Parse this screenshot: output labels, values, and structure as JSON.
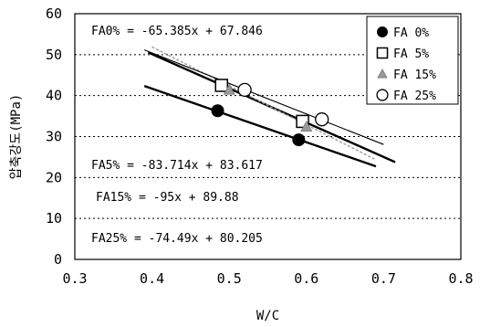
{
  "chart_data": {
    "type": "scatter",
    "xlabel": "W/C",
    "ylabel": "압축강도(MPa)",
    "xlim": [
      0.3,
      0.8
    ],
    "ylim": [
      0,
      60
    ],
    "x_ticks": [
      "0.3",
      "0.4",
      "0.5",
      "0.6",
      "0.7",
      "0.8"
    ],
    "y_ticks": [
      "0",
      "10",
      "20",
      "30",
      "40",
      "50",
      "60"
    ],
    "grid": "horizontal dashed",
    "legend_position": "top-right",
    "series": [
      {
        "name": "FA 0%",
        "marker": "filled-circle",
        "points": [
          {
            "x": 0.485,
            "y": 36.3
          },
          {
            "x": 0.59,
            "y": 29.2
          }
        ],
        "trend": {
          "slope": -65.385,
          "intercept": 67.846,
          "x_range": [
            0.39,
            0.69
          ]
        },
        "equation": "FA0% = -65.385x + 67.846",
        "color": "#000000"
      },
      {
        "name": "FA 5%",
        "marker": "open-square",
        "points": [
          {
            "x": 0.49,
            "y": 42.5
          },
          {
            "x": 0.595,
            "y": 33.7
          }
        ],
        "trend": {
          "slope": -83.714,
          "intercept": 83.617,
          "x_range": [
            0.395,
            0.715
          ]
        },
        "equation": "FA5% = -83.714x + 83.617",
        "color": "#000000"
      },
      {
        "name": "FA 15%",
        "marker": "triangle",
        "points": [
          {
            "x": 0.5,
            "y": 41.4
          },
          {
            "x": 0.6,
            "y": 32.4
          }
        ],
        "trend": {
          "slope": -95,
          "intercept": 89.88,
          "x_range": [
            0.4,
            0.69
          ]
        },
        "equation": "FA15% = -95x + 89.88",
        "color": "#999999"
      },
      {
        "name": "FA 25%",
        "marker": "open-circle",
        "points": [
          {
            "x": 0.52,
            "y": 41.4
          },
          {
            "x": 0.62,
            "y": 34.2
          }
        ],
        "trend": {
          "slope": -74.49,
          "intercept": 80.205,
          "x_range": [
            0.39,
            0.7
          ]
        },
        "equation": "FA25% = -74.49x + 80.205",
        "color": "#000000"
      }
    ]
  }
}
